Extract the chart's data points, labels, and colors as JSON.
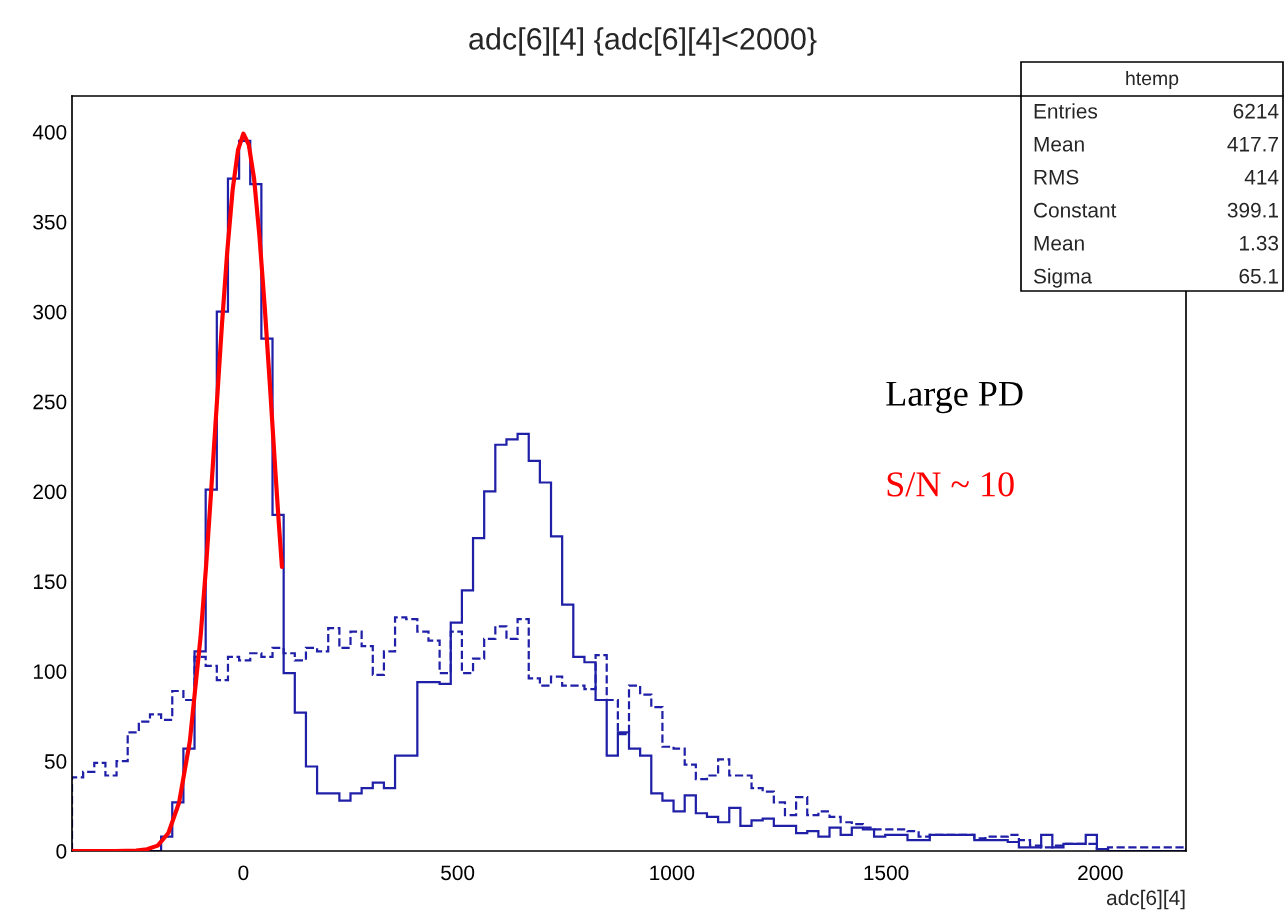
{
  "chart_data": {
    "type": "histogram",
    "title": "adc[6][4] {adc[6][4]<2000}",
    "xlabel": "adc[6][4]",
    "bins": [
      -400,
      -374,
      -348,
      -322,
      -296,
      -270,
      -244,
      -218,
      -192,
      -166,
      -140,
      -114,
      -88,
      -62,
      -36,
      -10,
      16,
      42,
      68,
      94,
      120,
      146,
      172,
      198,
      224,
      250,
      276,
      302,
      328,
      354,
      380,
      406,
      432,
      458,
      484,
      510,
      536,
      562,
      588,
      614,
      640,
      666,
      692,
      718,
      744,
      770,
      796,
      822,
      848,
      874,
      900,
      926,
      952,
      978,
      1004,
      1030,
      1056,
      1082,
      1108,
      1134,
      1160,
      1186,
      1212,
      1238,
      1264,
      1290,
      1316,
      1342,
      1368,
      1394,
      1420,
      1446,
      1472,
      1498,
      1524,
      1550,
      1576,
      1602,
      1628,
      1654,
      1680,
      1706,
      1732,
      1758,
      1784,
      1810,
      1836,
      1862,
      1888,
      1914,
      1940,
      1966,
      1992,
      2018,
      2044,
      2070,
      2096,
      2122,
      2148,
      2174,
      2200
    ],
    "series": [
      {
        "color": "#1f1fa8",
        "line_style": "solid",
        "values": [
          0,
          0,
          0,
          0,
          0,
          0,
          0,
          0,
          8,
          27,
          57,
          111,
          201,
          300,
          374,
          395,
          371,
          285,
          187,
          99,
          77,
          47,
          32,
          32,
          28,
          32,
          35,
          38,
          35,
          53,
          53,
          94,
          94,
          93,
          127,
          145,
          174,
          200,
          226,
          229,
          232,
          217,
          205,
          175,
          137,
          108,
          105,
          84,
          53,
          66,
          57,
          53,
          32,
          28,
          22,
          31,
          21,
          19,
          16,
          24,
          14,
          17,
          18,
          14,
          14,
          10,
          11,
          8,
          13,
          9,
          13,
          12,
          8,
          9,
          9,
          6,
          6,
          9,
          9,
          9,
          9,
          6,
          6,
          6,
          5,
          2,
          2,
          9,
          2,
          4,
          4,
          9,
          1,
          0,
          0,
          0,
          0,
          0,
          0,
          0
        ]
      },
      {
        "color": "#1f1fa8",
        "line_style": "dashed",
        "values": [
          41,
          44,
          49,
          42,
          50,
          66,
          72,
          76,
          73,
          89,
          84,
          108,
          103,
          95,
          108,
          106,
          110,
          108,
          113,
          110,
          106,
          113,
          111,
          124,
          113,
          122,
          114,
          98,
          111,
          130,
          129,
          122,
          117,
          99,
          122,
          99,
          107,
          118,
          125,
          118,
          129,
          96,
          92,
          97,
          92,
          92,
          90,
          109,
          84,
          65,
          92,
          87,
          80,
          58,
          57,
          48,
          40,
          42,
          51,
          42,
          42,
          35,
          33,
          27,
          20,
          30,
          20,
          22,
          19,
          16,
          15,
          13,
          12,
          12,
          12,
          11,
          8,
          9,
          9,
          9,
          9,
          7,
          8,
          8,
          9,
          6,
          3,
          2,
          3,
          4,
          4,
          4,
          1,
          2,
          2,
          2,
          2,
          2,
          2,
          2
        ]
      },
      {
        "type": "line",
        "color": "#ff0000",
        "line_style": "solid",
        "x": [
          -400,
          -300,
          -250,
          -225,
          -200,
          -175,
          -150,
          -125,
          -100,
          -87.5,
          -75,
          -62.5,
          -50,
          -37.5,
          -25,
          -12.5,
          0,
          12.5,
          25,
          37.5,
          50,
          62.5,
          75,
          82.5,
          90
        ],
        "values": [
          0,
          0,
          0.2,
          1,
          3,
          10,
          27,
          61,
          119,
          157,
          201,
          247,
          293,
          334,
          368,
          390,
          399,
          393,
          374,
          342,
          302,
          257,
          210,
          183,
          158
        ]
      }
    ],
    "xlim": [
      -400,
      2200
    ],
    "ylim": [
      0,
      420
    ],
    "xticks": [
      0,
      500,
      1000,
      1500,
      2000
    ],
    "yticks": [
      0,
      50,
      100,
      150,
      200,
      250,
      300,
      350,
      400
    ],
    "grid": false,
    "annotations": [
      "Large PD",
      "S/N ~ 10",
      "htemp",
      "Entries",
      "6214",
      "Mean",
      "417.7",
      "RMS",
      "414",
      "Constant",
      "399.1",
      "Mean",
      "1.33",
      "Sigma",
      "65.1"
    ]
  }
}
